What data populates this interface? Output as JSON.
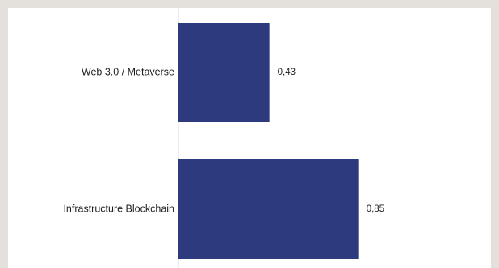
{
  "chart_data": {
    "type": "bar",
    "orientation": "horizontal",
    "categories": [
      "Web 3.0 / Metaverse",
      "Infrastructure Blockchain"
    ],
    "values": [
      0.43,
      0.85
    ],
    "value_labels": [
      "0,43",
      "0,85"
    ],
    "xlim": [
      0,
      1.0
    ],
    "title": "",
    "xlabel": "",
    "ylabel": "",
    "grid": false,
    "colors": {
      "bar": "#2e3a7e",
      "text": "#1f1f1f",
      "axis": "#d9d9d9"
    }
  }
}
